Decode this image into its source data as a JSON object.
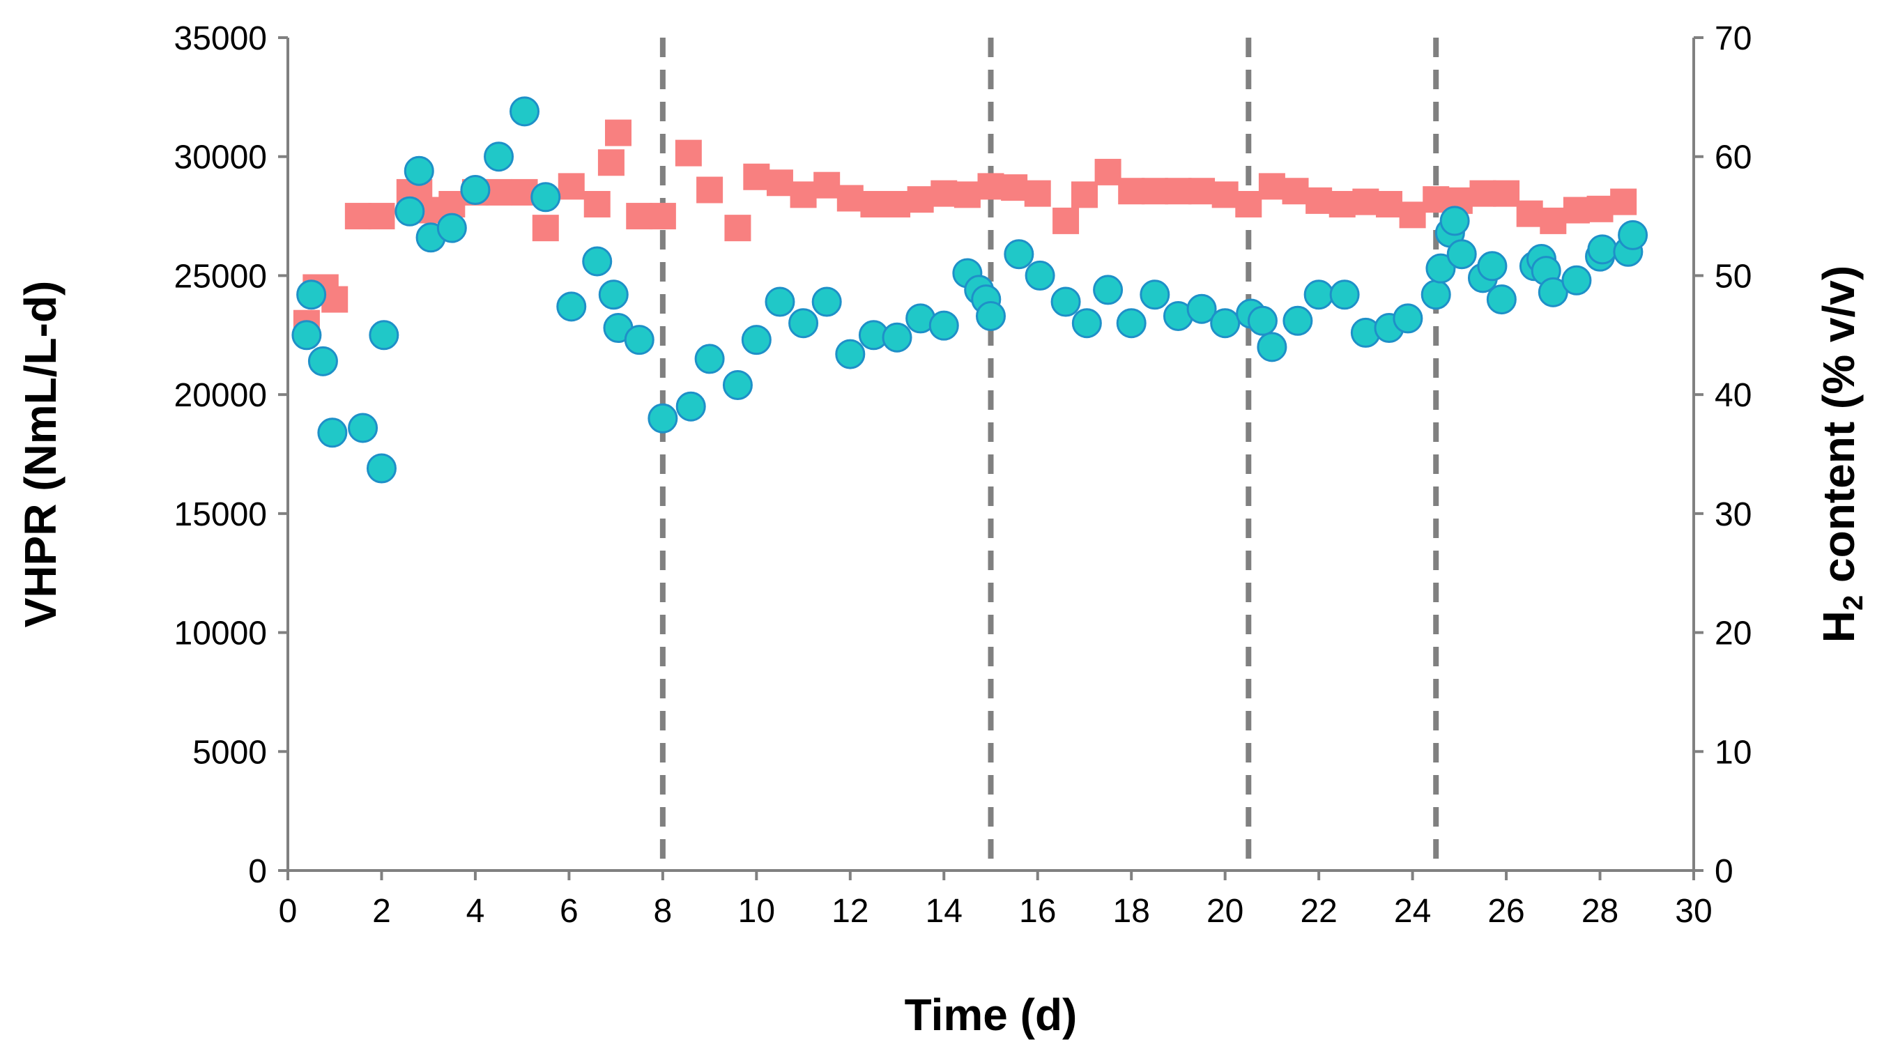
{
  "chart_data": {
    "type": "scatter",
    "xlabel": "Time (d)",
    "ylabel_left": "VHPR (NmL/L-d)",
    "ylabel_right": {
      "main": "H",
      "subscript": "2",
      "rest": " content (% v/v)"
    },
    "xlim": [
      0,
      30
    ],
    "ylim_left": [
      0,
      35000
    ],
    "ylim_right": [
      0,
      70
    ],
    "x_ticks": [
      "0",
      "2",
      "4",
      "6",
      "8",
      "10",
      "12",
      "14",
      "16",
      "18",
      "20",
      "22",
      "24",
      "26",
      "28",
      "30"
    ],
    "y_left_ticks": [
      "0",
      "5000",
      "10000",
      "15000",
      "20000",
      "25000",
      "30000",
      "35000"
    ],
    "y_right_ticks": [
      "0",
      "10",
      "20",
      "30",
      "40",
      "50",
      "60",
      "70"
    ],
    "vertical_lines_x": [
      8,
      15,
      20.5,
      24.5
    ],
    "colors": {
      "vhpr": "#20c8c8",
      "vhpr_stroke": "#1e90c8",
      "h2": "#f88080",
      "vline": "#808080",
      "axis": "#808080"
    },
    "series": [
      {
        "name": "VHPR",
        "axis": "left",
        "marker": "circle",
        "x": [
          0.4,
          0.5,
          0.75,
          0.95,
          1.6,
          2,
          2.05,
          2.6,
          2.8,
          3.05,
          3.5,
          4,
          4.5,
          5.05,
          5.5,
          6.05,
          6.6,
          6.95,
          7.05,
          7.5,
          8,
          8.6,
          9,
          9.6,
          10,
          10.5,
          11,
          11.5,
          12,
          12.5,
          13,
          13.5,
          14,
          14.5,
          14.75,
          14.9,
          15,
          15.6,
          16.05,
          16.6,
          17.05,
          17.5,
          18,
          18.5,
          19,
          19.5,
          20,
          20.55,
          20.8,
          21,
          21.55,
          22,
          22.55,
          23,
          23.5,
          23.9,
          24.5,
          24.6,
          24.8,
          24.9,
          25.05,
          25.5,
          25.7,
          25.9,
          26.6,
          26.75,
          26.85,
          27,
          27.5,
          28,
          28.05,
          28.6,
          28.7
        ],
        "y": [
          22500,
          24200,
          21400,
          18400,
          18600,
          16900,
          22500,
          27700,
          29400,
          26600,
          27000,
          28600,
          30000,
          31900,
          28300,
          23700,
          25600,
          24200,
          22800,
          22300,
          19000,
          19500,
          21500,
          20400,
          22300,
          23900,
          23000,
          23900,
          21700,
          22500,
          22400,
          23200,
          22900,
          25100,
          24400,
          24000,
          23300,
          25900,
          25000,
          23900,
          23000,
          24400,
          23000,
          24200,
          23300,
          23600,
          23000,
          23400,
          23100,
          22000,
          23100,
          24200,
          24200,
          22600,
          22800,
          23200,
          24200,
          25300,
          26800,
          27300,
          25900,
          24900,
          25400,
          24000,
          25400,
          25700,
          25200,
          24300,
          24800,
          25800,
          26100,
          26000,
          26700
        ]
      },
      {
        "name": "H2 content",
        "axis": "right",
        "marker": "square",
        "x": [
          0.4,
          0.6,
          0.8,
          1,
          1.5,
          2,
          2.6,
          2.8,
          3.05,
          3.5,
          4,
          4.5,
          5.05,
          5.5,
          6.05,
          6.6,
          6.9,
          7.05,
          7.5,
          8,
          8.55,
          9,
          9.6,
          10,
          10.5,
          11,
          11.5,
          12,
          12.5,
          13,
          13.5,
          14,
          14.5,
          15,
          15.5,
          16,
          16.6,
          17,
          17.5,
          18,
          18.5,
          19,
          19.5,
          20,
          20.5,
          21,
          21.5,
          22,
          22.5,
          23,
          23.5,
          24,
          24.5,
          25,
          25.5,
          26,
          26.5,
          27,
          27.5,
          28,
          28.5
        ],
        "y": [
          46,
          49,
          49,
          48,
          55,
          55,
          57,
          57,
          55.5,
          56,
          57,
          57,
          57,
          54,
          57.5,
          56,
          59.5,
          62,
          55,
          55,
          60.3,
          57.2,
          54,
          58.3,
          57.8,
          56.8,
          57.6,
          56.5,
          56,
          56,
          56.4,
          56.9,
          56.8,
          57.5,
          57.4,
          56.9,
          54.6,
          56.8,
          58.7,
          57.1,
          57.1,
          57.1,
          57.1,
          56.8,
          56,
          57.5,
          57.1,
          56.3,
          56,
          56.2,
          56,
          55.1,
          56.4,
          56.3,
          56.9,
          56.9,
          55.2,
          54.6,
          55.5,
          55.6,
          56.2
        ]
      }
    ]
  }
}
